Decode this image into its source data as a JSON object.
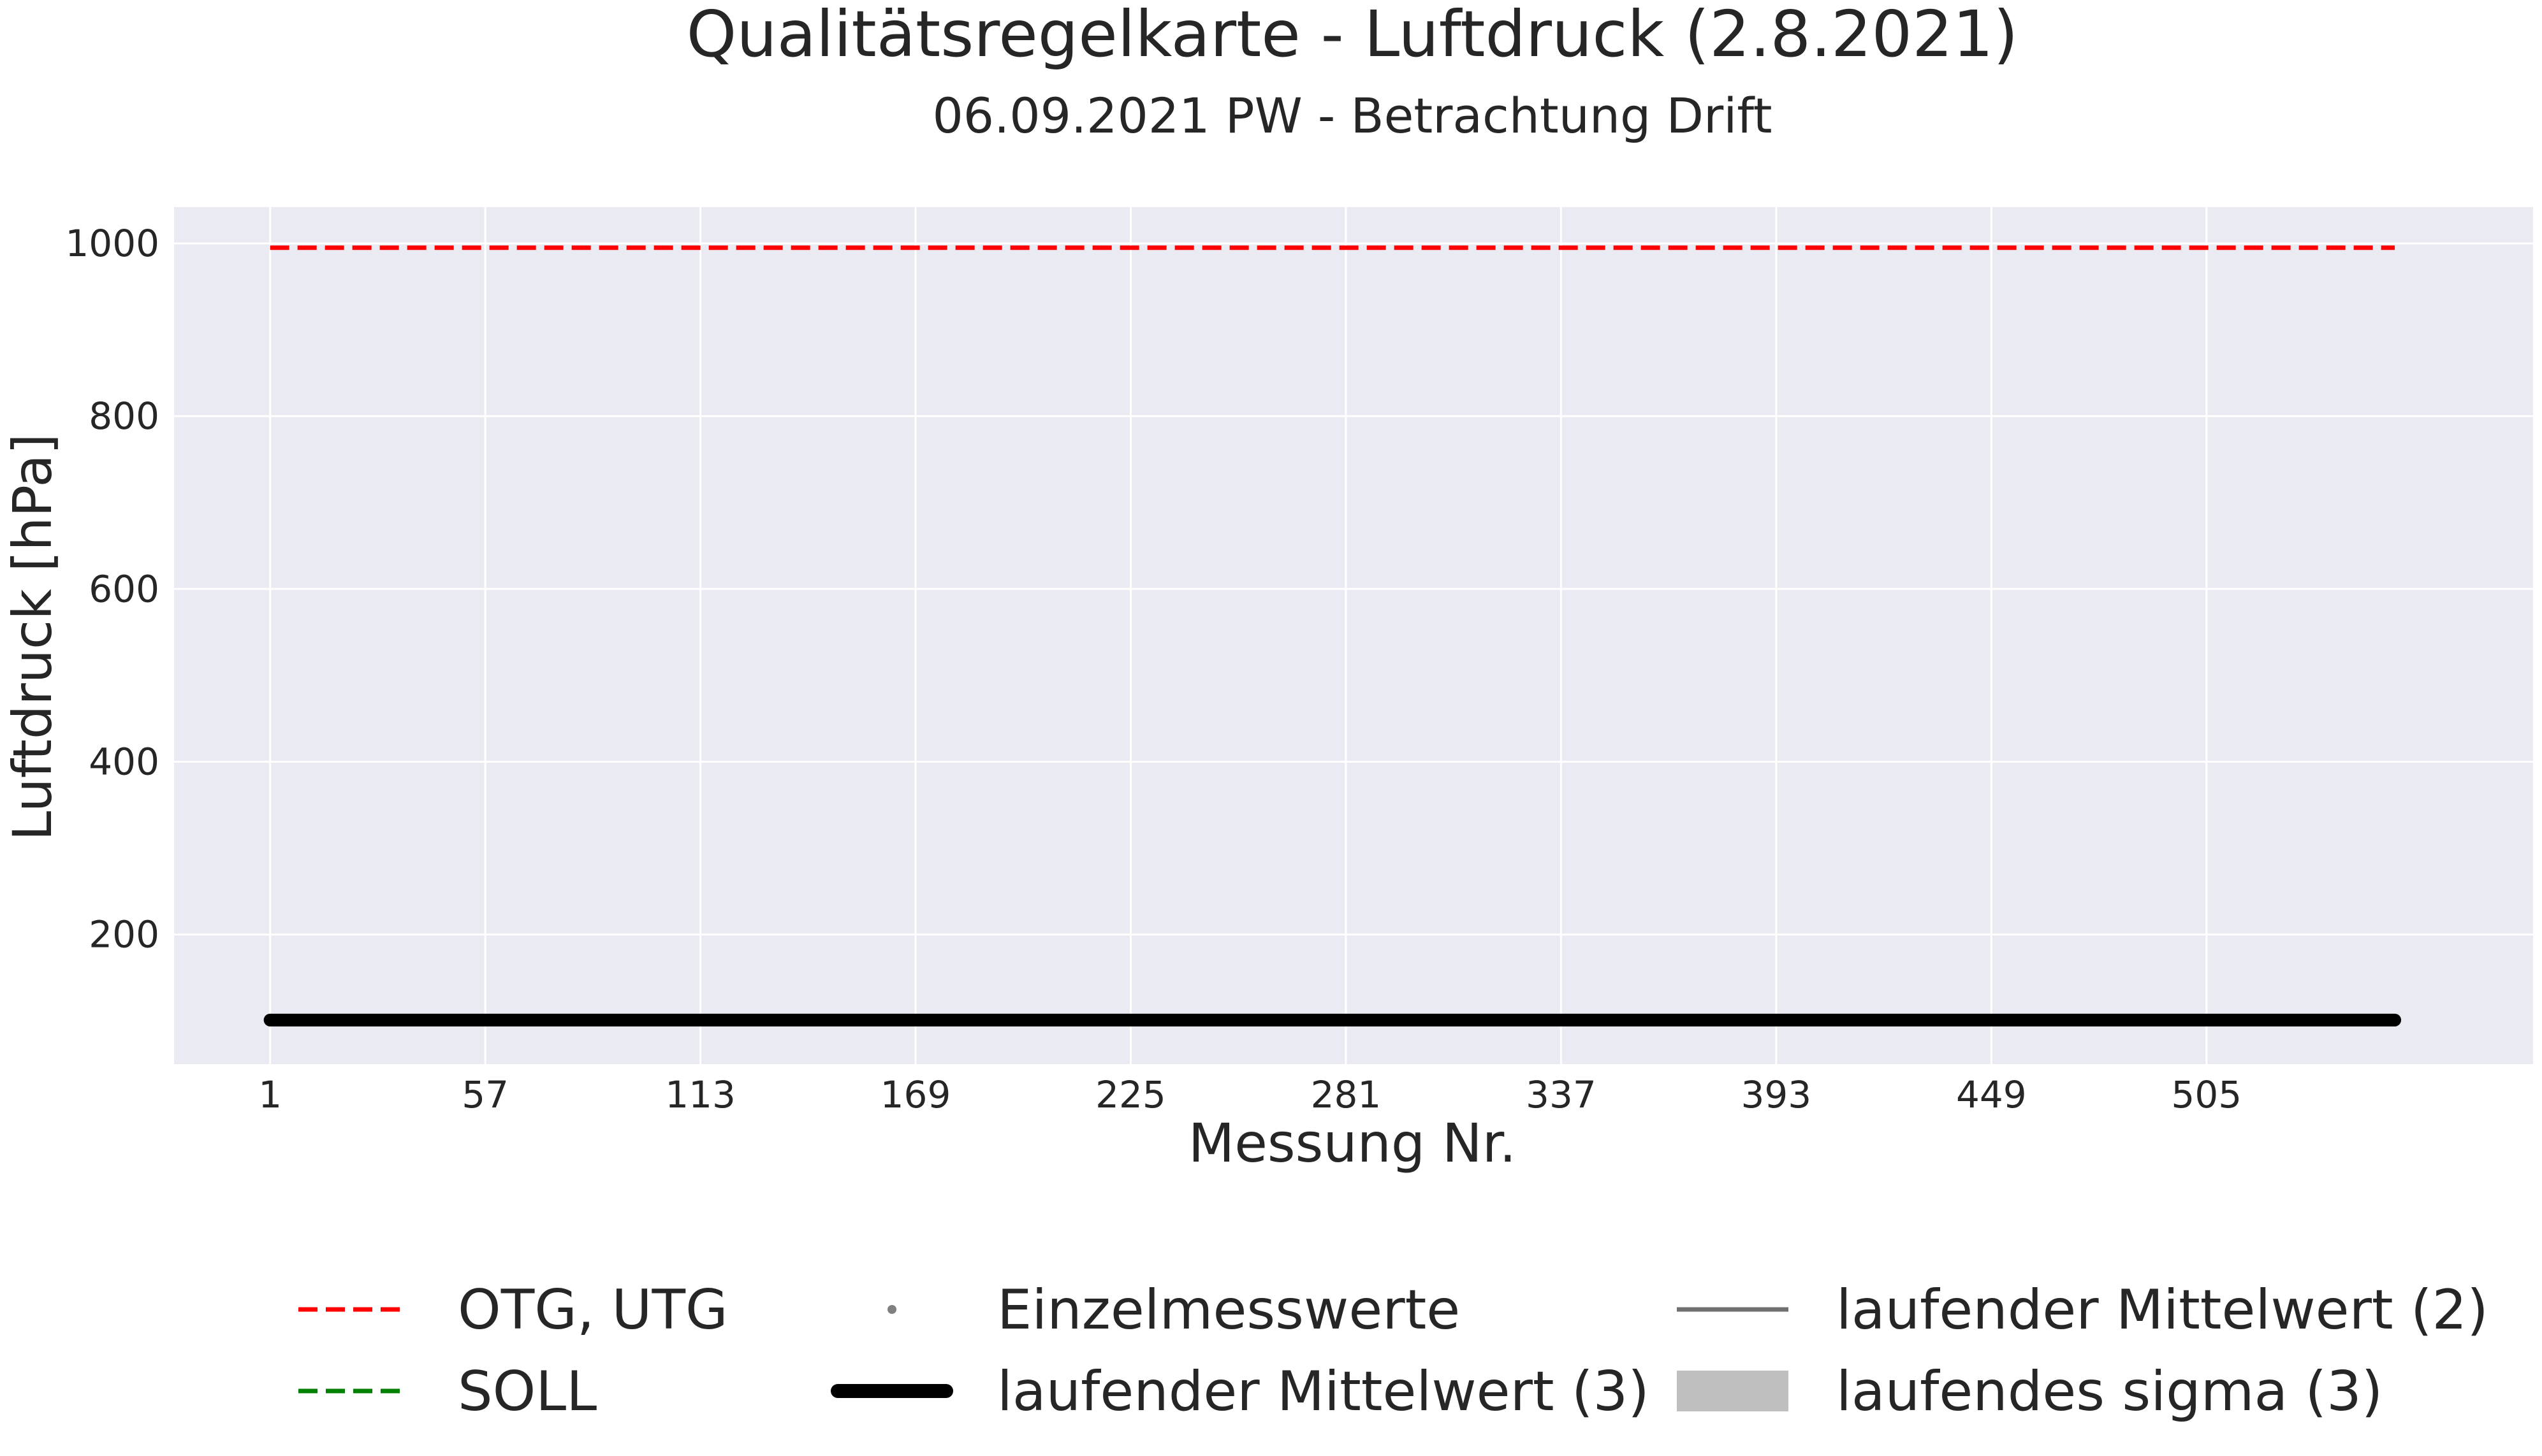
{
  "chart_data": {
    "type": "line",
    "title": "Qualitätsregelkarte - Luftdruck (2.8.2021)",
    "subtitle": "06.09.2021 PW - Betrachtung Drift",
    "xlabel": "Messung Nr.",
    "ylabel": "Luftdruck [hPa]",
    "xlim": [
      -24,
      590
    ],
    "ylim": [
      50,
      1042
    ],
    "x_ticks": [
      1,
      57,
      113,
      169,
      225,
      281,
      337,
      393,
      449,
      505
    ],
    "y_ticks": [
      200,
      400,
      600,
      800,
      1000
    ],
    "grid": true,
    "background": "#eaeaf2",
    "legend_placement": "bottom",
    "series": [
      {
        "name": "OTG, UTG",
        "style": "dashed",
        "color": "#ff0000",
        "x": [
          1,
          554
        ],
        "y": [
          995,
          995
        ]
      },
      {
        "name": "SOLL",
        "style": "dashed",
        "color": "#008000",
        "x": [],
        "y": []
      },
      {
        "name": "Einzelmesswerte",
        "style": "points",
        "color": "#808080",
        "x": [],
        "y": []
      },
      {
        "name": "laufender Mittelwert (3)",
        "style": "thick-solid",
        "color": "#000000",
        "x": [
          1,
          554
        ],
        "y": [
          101,
          101
        ]
      },
      {
        "name": "laufender Mittelwert (2)",
        "style": "solid",
        "color": "#707070",
        "x": [],
        "y": []
      },
      {
        "name": "laufendes sigma (3)",
        "style": "band",
        "color": "#bfbfbf",
        "x": [],
        "y": []
      }
    ],
    "legend": [
      {
        "label": "OTG, UTG",
        "style": "dashed",
        "color": "#ff0000"
      },
      {
        "label": "SOLL",
        "style": "dashed",
        "color": "#008000"
      },
      {
        "label": "Einzelmesswerte",
        "style": "point",
        "color": "#808080"
      },
      {
        "label": "laufender Mittelwert (3)",
        "style": "thick-solid",
        "color": "#000000"
      },
      {
        "label": "laufender Mittelwert (2)",
        "style": "solid",
        "color": "#707070"
      },
      {
        "label": "laufendes sigma (3)",
        "style": "band",
        "color": "#bfbfbf"
      }
    ]
  }
}
